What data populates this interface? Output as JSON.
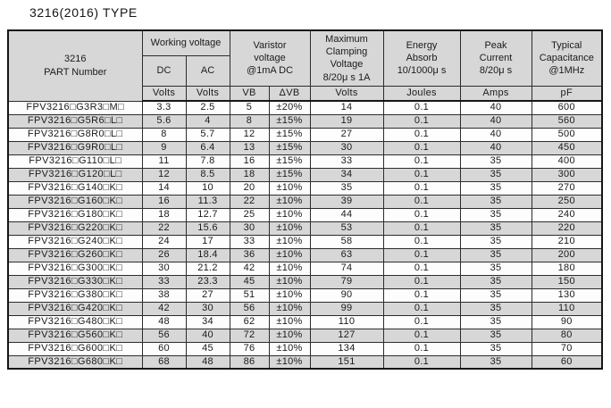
{
  "page": {
    "title": "3216(2016) TYPE"
  },
  "table": {
    "header": {
      "part_number": "3216\nPART Number",
      "working_voltage": "Working voltage",
      "dc": "DC",
      "ac": "AC",
      "varistor_voltage": "Varistor\nvoltage\n@1mA DC",
      "max_clamping": "Maximum\nClamping\nVoltage\n8/20μ s 1A",
      "energy_absorb": "Energy\nAbsorb\n10/1000μ s",
      "peak_current": "Peak\nCurrent\n8/20μ s",
      "capacitance": "Typical\nCapacitance\n@1MHz"
    },
    "units": [
      "Volts",
      "Volts",
      "VB",
      "ΔVB",
      "Volts",
      "Joules",
      "Amps",
      "pF"
    ],
    "rows": [
      [
        "FPV3216□G3R3□M□",
        "3.3",
        "2.5",
        "5",
        "±20%",
        "14",
        "0.1",
        "40",
        "600"
      ],
      [
        "FPV3216□G5R6□L□",
        "5.6",
        "4",
        "8",
        "±15%",
        "19",
        "0.1",
        "40",
        "560"
      ],
      [
        "FPV3216□G8R0□L□",
        "8",
        "5.7",
        "12",
        "±15%",
        "27",
        "0.1",
        "40",
        "500"
      ],
      [
        "FPV3216□G9R0□L□",
        "9",
        "6.4",
        "13",
        "±15%",
        "30",
        "0.1",
        "40",
        "450"
      ],
      [
        "FPV3216□G110□L□",
        "11",
        "7.8",
        "16",
        "±15%",
        "33",
        "0.1",
        "35",
        "400"
      ],
      [
        "FPV3216□G120□L□",
        "12",
        "8.5",
        "18",
        "±15%",
        "34",
        "0.1",
        "35",
        "300"
      ],
      [
        "FPV3216□G140□K□",
        "14",
        "10",
        "20",
        "±10%",
        "35",
        "0.1",
        "35",
        "270"
      ],
      [
        "FPV3216□G160□K□",
        "16",
        "11.3",
        "22",
        "±10%",
        "39",
        "0.1",
        "35",
        "250"
      ],
      [
        "FPV3216□G180□K□",
        "18",
        "12.7",
        "25",
        "±10%",
        "44",
        "0.1",
        "35",
        "240"
      ],
      [
        "FPV3216□G220□K□",
        "22",
        "15.6",
        "30",
        "±10%",
        "53",
        "0.1",
        "35",
        "220"
      ],
      [
        "FPV3216□G240□K□",
        "24",
        "17",
        "33",
        "±10%",
        "58",
        "0.1",
        "35",
        "210"
      ],
      [
        "FPV3216□G260□K□",
        "26",
        "18.4",
        "36",
        "±10%",
        "63",
        "0.1",
        "35",
        "200"
      ],
      [
        "FPV3216□G300□K□",
        "30",
        "21.2",
        "42",
        "±10%",
        "74",
        "0.1",
        "35",
        "180"
      ],
      [
        "FPV3216□G330□K□",
        "33",
        "23.3",
        "45",
        "±10%",
        "79",
        "0.1",
        "35",
        "150"
      ],
      [
        "FPV3216□G380□K□",
        "38",
        "27",
        "51",
        "±10%",
        "90",
        "0.1",
        "35",
        "130"
      ],
      [
        "FPV3216□G420□K□",
        "42",
        "30",
        "56",
        "±10%",
        "99",
        "0.1",
        "35",
        "110"
      ],
      [
        "FPV3216□G480□K□",
        "48",
        "34",
        "62",
        "±10%",
        "110",
        "0.1",
        "35",
        "90"
      ],
      [
        "FPV3216□G560□K□",
        "56",
        "40",
        "72",
        "±10%",
        "127",
        "0.1",
        "35",
        "80"
      ],
      [
        "FPV3216□G600□K□",
        "60",
        "45",
        "76",
        "±10%",
        "134",
        "0.1",
        "35",
        "70"
      ],
      [
        "FPV3216□G680□K□",
        "68",
        "48",
        "86",
        "±10%",
        "151",
        "0.1",
        "35",
        "60"
      ]
    ],
    "colors": {
      "header_bg": "#d7d7d7",
      "row_alt_bg": "#d7d7d7",
      "border": "#161616",
      "text": "#1b1b1b"
    }
  }
}
